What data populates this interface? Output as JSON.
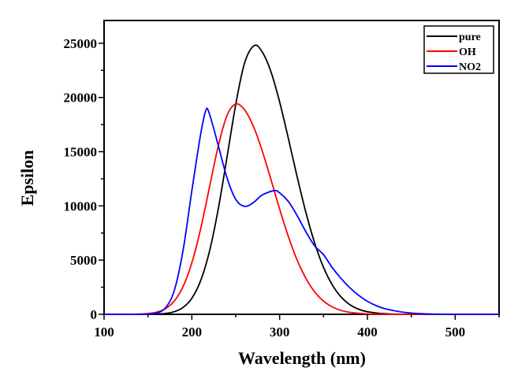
{
  "chart_data": {
    "type": "line",
    "title": "",
    "xlabel": "Wavelength (nm)",
    "ylabel": "Epsilon",
    "xlim": [
      100,
      550
    ],
    "ylim": [
      0,
      27100
    ],
    "xticks": [
      100,
      200,
      300,
      400,
      500
    ],
    "xtick_labels": [
      "100",
      "200",
      "300",
      "400",
      "500"
    ],
    "yticks": [
      0,
      5000,
      10000,
      15000,
      20000,
      25000
    ],
    "ytick_labels": [
      "0",
      "5000",
      "10000",
      "15000",
      "20000",
      "25000"
    ],
    "grid": false,
    "legend": {
      "position": "top-right",
      "boxed": true
    },
    "series": [
      {
        "name": "pure",
        "color": "#000000",
        "x": [
          100,
          140,
          150,
          160,
          170,
          180,
          190,
          200,
          210,
          220,
          230,
          240,
          250,
          260,
          271,
          280,
          290,
          300,
          310,
          320,
          330,
          340,
          350,
          360,
          370,
          380,
          390,
          400,
          420,
          440,
          460,
          500,
          550
        ],
        "y": [
          0,
          0,
          7,
          25,
          82,
          242,
          632,
          1482,
          3097,
          5780,
          9680,
          14470,
          19360,
          23160,
          24780,
          24220,
          22400,
          19590,
          16200,
          12670,
          9370,
          6550,
          4330,
          2710,
          1600,
          894,
          474,
          237,
          50,
          8,
          0,
          0,
          0
        ]
      },
      {
        "name": "OH",
        "color": "#ff0000",
        "x": [
          100,
          130,
          140,
          150,
          160,
          170,
          180,
          190,
          200,
          210,
          220,
          230,
          240,
          250,
          260,
          270,
          280,
          290,
          300,
          310,
          320,
          330,
          340,
          350,
          360,
          370,
          380,
          400,
          420,
          450,
          500,
          550
        ],
        "y": [
          0,
          0,
          21,
          70,
          203,
          528,
          1228,
          2560,
          4750,
          7880,
          11690,
          15490,
          18330,
          19400,
          18870,
          17360,
          15120,
          12460,
          9710,
          7160,
          5000,
          3300,
          2060,
          1220,
          681,
          359,
          180,
          38,
          8,
          0,
          0,
          0
        ]
      },
      {
        "name": "NO2",
        "color": "#0000ff",
        "x": [
          100,
          140,
          150,
          160,
          170,
          180,
          190,
          200,
          210,
          216,
          220,
          230,
          240,
          250,
          260,
          270,
          280,
          294,
          300,
          310,
          320,
          330,
          340,
          350,
          360,
          370,
          380,
          390,
          400,
          410,
          420,
          440,
          460,
          480,
          500,
          550
        ],
        "y": [
          0,
          0,
          20,
          120,
          600,
          2200,
          5900,
          11400,
          16600,
          18820,
          18500,
          15600,
          12600,
          10600,
          9960,
          10300,
          11000,
          11410,
          11200,
          10400,
          9100,
          7600,
          6300,
          5500,
          4300,
          3300,
          2450,
          1750,
          1200,
          800,
          520,
          200,
          60,
          12,
          0,
          0
        ]
      }
    ]
  }
}
